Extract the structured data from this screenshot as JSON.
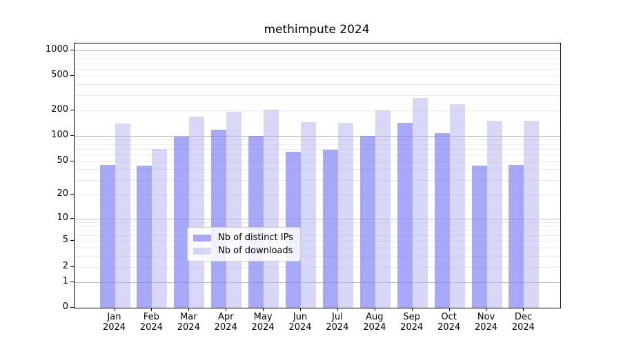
{
  "figure": {
    "background": "#ffffff",
    "axis_color": "#000000"
  },
  "chart_data": {
    "type": "bar",
    "title": "methimpute 2024",
    "categories": [
      "Jan",
      "Feb",
      "Mar",
      "Apr",
      "May",
      "Jun",
      "Jul",
      "Aug",
      "Sep",
      "Oct",
      "Nov",
      "Dec"
    ],
    "x_year_label": "2024",
    "series": [
      {
        "name": "Nb of distinct IPs",
        "color": "rgba(131,131,245,0.70)",
        "values": [
          45,
          44,
          97,
          118,
          99,
          65,
          69,
          99,
          141,
          108,
          44,
          45
        ]
      },
      {
        "name": "Nb of downloads",
        "color": "rgba(177,177,237,0.50)",
        "values": [
          140,
          70,
          167,
          191,
          203,
          145,
          143,
          198,
          278,
          235,
          149,
          150
        ]
      }
    ],
    "y_ticks": [
      0,
      1,
      2,
      5,
      10,
      20,
      50,
      100,
      200,
      500,
      1000
    ],
    "scale": "log1p",
    "ylim": [
      0,
      1200
    ],
    "xlabel": "",
    "ylabel": "",
    "grid": {
      "enabled": true,
      "major_color": "#bcbcbc",
      "minor_color": "#ebebeb"
    },
    "legend": {
      "position": "bottom-center-inside"
    }
  }
}
